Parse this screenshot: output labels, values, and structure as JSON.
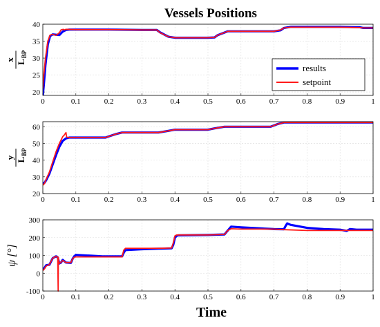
{
  "figure": {
    "title": "Vessels Positions",
    "xlabel": "Time"
  },
  "colors": {
    "results": "#0000ff",
    "setpoint": "#ff1a1a"
  },
  "chart_data": [
    {
      "type": "line",
      "ylabel": {
        "num": "x",
        "den": "L",
        "den_sub": "BP"
      },
      "xlim": [
        0,
        1
      ],
      "ylim": [
        19,
        40
      ],
      "xticks": [
        "0",
        "0.1",
        "0.2",
        "0.3",
        "0.4",
        "0.5",
        "0.6",
        "0.7",
        "0.8",
        "0.9",
        "1"
      ],
      "yticks": [
        20,
        25,
        30,
        35,
        40
      ],
      "grid": true,
      "legend": {
        "position": "lower-right",
        "entries": [
          "results",
          "setpoint"
        ]
      },
      "series": [
        {
          "name": "results",
          "color": "#0000ff",
          "x": [
            0,
            0.003,
            0.008,
            0.015,
            0.022,
            0.03,
            0.04,
            0.05,
            0.06,
            0.07,
            0.08,
            0.1,
            0.2,
            0.3,
            0.345,
            0.355,
            0.38,
            0.4,
            0.5,
            0.52,
            0.53,
            0.56,
            0.7,
            0.72,
            0.73,
            0.75,
            0.9,
            0.96,
            0.97,
            1
          ],
          "y": [
            19,
            22,
            28,
            34,
            36.5,
            37,
            36.9,
            36.8,
            37.8,
            38.3,
            38.4,
            38.4,
            38.4,
            38.3,
            38.3,
            37.6,
            36.3,
            36,
            36,
            36.1,
            36.8,
            37.9,
            37.9,
            38.2,
            38.9,
            39.2,
            39.2,
            39.1,
            38.9,
            38.9
          ]
        },
        {
          "name": "setpoint",
          "color": "#ff1a1a",
          "x": [
            0,
            0.003,
            0.008,
            0.015,
            0.022,
            0.03,
            0.04,
            0.05,
            0.055,
            0.062,
            0.065,
            0.07,
            0.1,
            0.2,
            0.3,
            0.345,
            0.355,
            0.38,
            0.4,
            0.5,
            0.52,
            0.53,
            0.56,
            0.7,
            0.72,
            0.73,
            0.75,
            0.9,
            0.96,
            0.97,
            1
          ],
          "y": [
            21,
            25,
            30,
            35,
            36.8,
            37,
            36.7,
            37.5,
            38.3,
            38.5,
            38.3,
            38.5,
            38.4,
            38.4,
            38.3,
            38.3,
            37.5,
            36.3,
            36,
            36,
            36.1,
            36.8,
            37.9,
            37.9,
            38.3,
            38.9,
            39.1,
            39.1,
            39,
            38.9,
            38.9
          ]
        }
      ]
    },
    {
      "type": "line",
      "ylabel": {
        "num": "y",
        "den": "L",
        "den_sub": "BP"
      },
      "xlim": [
        0,
        1
      ],
      "ylim": [
        20,
        63
      ],
      "xticks": [
        "0",
        "0.1",
        "0.2",
        "0.3",
        "0.4",
        "0.5",
        "0.6",
        "0.7",
        "0.8",
        "0.9",
        "1"
      ],
      "yticks": [
        20,
        30,
        40,
        50,
        60
      ],
      "grid": true,
      "series": [
        {
          "name": "results",
          "color": "#0000ff",
          "x": [
            0,
            0.005,
            0.01,
            0.02,
            0.03,
            0.04,
            0.05,
            0.06,
            0.07,
            0.08,
            0.1,
            0.19,
            0.2,
            0.22,
            0.24,
            0.3,
            0.35,
            0.38,
            0.4,
            0.5,
            0.52,
            0.55,
            0.69,
            0.71,
            0.73,
            1
          ],
          "y": [
            26,
            26.5,
            28,
            32,
            37.5,
            43,
            48,
            51.5,
            53,
            53.5,
            53.5,
            53.5,
            54.2,
            55.5,
            56.5,
            56.5,
            56.5,
            57.5,
            58.2,
            58.2,
            59,
            60,
            60,
            61.5,
            62.5,
            62.5
          ]
        },
        {
          "name": "setpoint",
          "color": "#ff1a1a",
          "x": [
            0,
            0.005,
            0.01,
            0.02,
            0.03,
            0.04,
            0.05,
            0.06,
            0.065,
            0.07,
            0.072,
            0.075,
            0.08,
            0.1,
            0.19,
            0.2,
            0.22,
            0.24,
            0.3,
            0.35,
            0.38,
            0.4,
            0.5,
            0.52,
            0.55,
            0.69,
            0.71,
            0.73,
            1
          ],
          "y": [
            25,
            26,
            28.5,
            33,
            39,
            45,
            50,
            54,
            55,
            56.5,
            54,
            53.5,
            53.5,
            53.5,
            53.5,
            54.2,
            55.5,
            56.5,
            56.5,
            56.5,
            57.5,
            58.2,
            58.2,
            59,
            60,
            60,
            61.5,
            62.5,
            62.5
          ]
        }
      ]
    },
    {
      "type": "line",
      "ylabel": {
        "text": "ψ [°]"
      },
      "xlim": [
        0,
        1
      ],
      "ylim": [
        -100,
        300
      ],
      "xticks": [
        "0",
        "0.1",
        "0.2",
        "0.3",
        "0.4",
        "0.5",
        "0.6",
        "0.7",
        "0.8",
        "0.9",
        "1"
      ],
      "yticks": [
        -100,
        0,
        100,
        200,
        300
      ],
      "grid": true,
      "series": [
        {
          "name": "results",
          "color": "#0000ff",
          "x": [
            0,
            0.005,
            0.01,
            0.02,
            0.03,
            0.04,
            0.045,
            0.05,
            0.055,
            0.06,
            0.07,
            0.085,
            0.09,
            0.095,
            0.1,
            0.15,
            0.18,
            0.24,
            0.245,
            0.25,
            0.3,
            0.35,
            0.39,
            0.395,
            0.4,
            0.405,
            0.41,
            0.5,
            0.55,
            0.56,
            0.57,
            0.6,
            0.7,
            0.73,
            0.735,
            0.74,
            0.75,
            0.8,
            0.85,
            0.9,
            0.92,
            0.93,
            0.95,
            1
          ],
          "y": [
            20,
            30,
            45,
            48,
            85,
            95,
            90,
            55,
            60,
            75,
            60,
            58,
            80,
            95,
            103,
            98,
            95,
            95,
            115,
            130,
            135,
            138,
            140,
            160,
            200,
            210,
            213,
            215,
            218,
            240,
            262,
            258,
            248,
            247,
            265,
            280,
            272,
            255,
            248,
            245,
            238,
            248,
            245,
            245
          ]
        },
        {
          "name": "setpoint",
          "color": "#ff1a1a",
          "x": [
            0,
            0.005,
            0.01,
            0.02,
            0.03,
            0.04,
            0.045,
            0.0465,
            0.047,
            0.048,
            0.05,
            0.055,
            0.06,
            0.07,
            0.085,
            0.09,
            0.095,
            0.1,
            0.15,
            0.18,
            0.24,
            0.245,
            0.25,
            0.3,
            0.35,
            0.39,
            0.395,
            0.4,
            0.405,
            0.41,
            0.5,
            0.55,
            0.56,
            0.57,
            0.6,
            0.7,
            0.73,
            0.8,
            0.9,
            0.92,
            1
          ],
          "y": [
            15,
            25,
            40,
            50,
            85,
            95,
            90,
            -100,
            90,
            70,
            55,
            62,
            72,
            60,
            60,
            80,
            90,
            92,
            92,
            92,
            92,
            130,
            140,
            140,
            140,
            142,
            170,
            210,
            215,
            215,
            215,
            218,
            240,
            250,
            248,
            248,
            245,
            240,
            240,
            240,
            240
          ]
        }
      ]
    }
  ]
}
